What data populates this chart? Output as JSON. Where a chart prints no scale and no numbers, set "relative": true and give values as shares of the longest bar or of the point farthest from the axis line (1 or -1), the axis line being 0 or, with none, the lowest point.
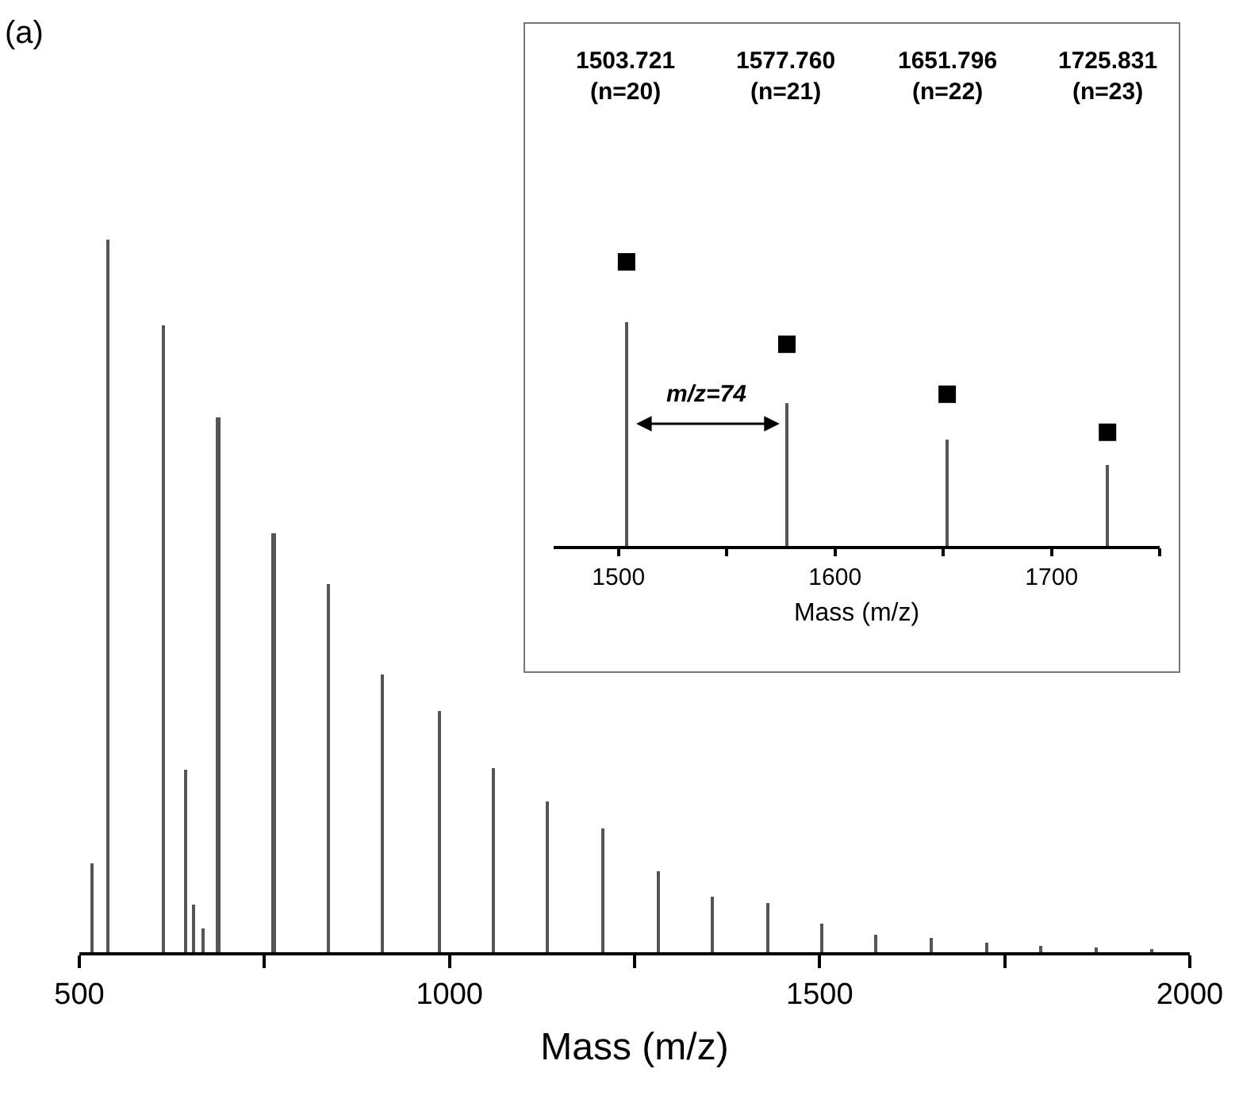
{
  "chart_data": [
    {
      "type": "bar",
      "relative": true,
      "xlabel": "Mass (m/z)",
      "color": "#555555",
      "grid": false,
      "tick_labels": "x",
      "x": [
        518,
        540,
        614,
        644,
        654,
        667,
        688,
        763,
        836,
        910,
        986,
        1059,
        1133,
        1207,
        1282,
        1356,
        1430,
        1504,
        1577,
        1652,
        1726,
        1800,
        1875,
        1950
      ],
      "values": [
        0.124,
        1.0,
        0.88,
        0.256,
        0.066,
        0.033,
        0.751,
        0.587,
        0.516,
        0.39,
        0.338,
        0.258,
        0.211,
        0.174,
        0.114,
        0.079,
        0.068,
        0.041,
        0.025,
        0.019,
        0.013,
        0.008,
        0.006,
        0.005
      ],
      "xlim": [
        500,
        2000
      ],
      "xticks": [
        500,
        {
          "value": 750,
          "label": null
        },
        1000,
        {
          "value": 1250,
          "label": null
        },
        1500,
        {
          "value": 1750,
          "label": null
        },
        2000
      ],
      "annotations": [
        "(a)"
      ]
    },
    {
      "type": "bar",
      "relative": true,
      "xlabel": "Mass (m/z)",
      "grid": false,
      "tick_labels": "x",
      "series": [
        {
          "type": "bar",
          "color": "#555555",
          "x": [
            1503.721,
            1577.76,
            1651.796,
            1725.831
          ],
          "values": [
            0.79,
            0.502,
            0.374,
            0.284
          ]
        },
        {
          "type": "scatter",
          "marker": "square",
          "color": "#000000",
          "x": [
            1503.721,
            1577.76,
            1651.796,
            1725.831
          ],
          "values": [
            1.0,
            0.71,
            0.534,
            0.4
          ]
        }
      ],
      "xlim": [
        1470,
        1750
      ],
      "xticks": [
        1500,
        {
          "value": 1550,
          "label": null
        },
        1600,
        {
          "value": 1650,
          "label": null
        },
        1700,
        {
          "value": 1750,
          "label": null
        }
      ],
      "annotations": [
        "1503.721\n(n=20)",
        "1577.760\n(n=21)",
        "1651.796\n(n=22)",
        "1725.831\n(n=23)",
        "m/z=74"
      ]
    }
  ]
}
